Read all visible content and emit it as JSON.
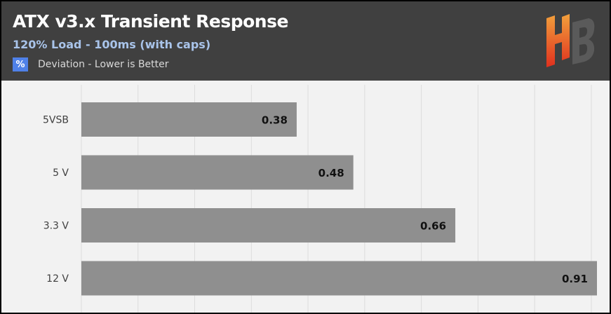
{
  "header": {
    "title": "ATX v3.x Transient Response",
    "subtitle": "120% Load - 100ms (with caps)",
    "legend_icon": "%",
    "legend_label": "Deviation - Lower is Better"
  },
  "logo": {
    "icon": "hb-logo-icon"
  },
  "colors": {
    "header_bg": "#404040",
    "plot_bg": "#f2f2f2",
    "subtitle": "#a9c4ea",
    "accent": "#4f81e8",
    "bar": "#8f8f8f",
    "grid": "#dcdcdc",
    "logo_gradient": [
      "#f2a03c",
      "#e0301e"
    ]
  },
  "chart_data": {
    "type": "bar",
    "orientation": "horizontal",
    "title": "ATX v3.x Transient Response",
    "subtitle": "120% Load - 100ms (with caps)",
    "legend": [
      "Deviation - Lower is Better"
    ],
    "categories": [
      "5VSB",
      "5 V",
      "3.3 V",
      "12 V"
    ],
    "values": [
      0.38,
      0.48,
      0.66,
      0.91
    ],
    "xlim": [
      0,
      0.91
    ],
    "grid": true,
    "data_labels": true
  }
}
